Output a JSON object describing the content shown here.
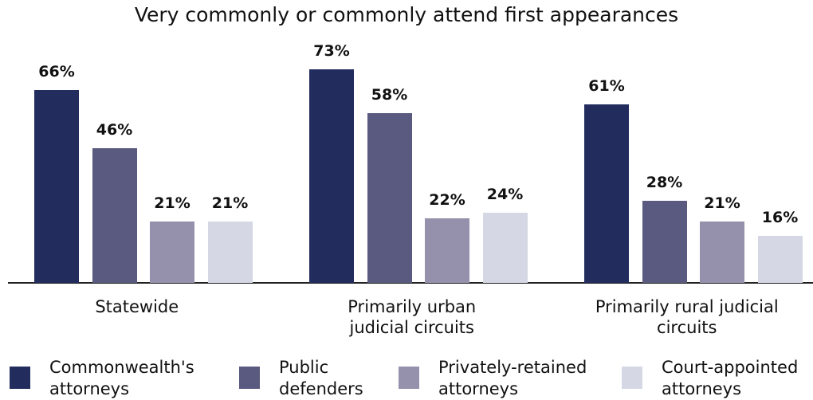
{
  "chart_data": {
    "type": "bar",
    "title": "Very commonly or commonly attend first appearances",
    "categories": [
      "Statewide",
      "Primarily urban judicial circuits",
      "Primarily rural judicial circuits"
    ],
    "series": [
      {
        "name": "Commonwealth's attorneys",
        "color": "#222d5e",
        "values": [
          66,
          73,
          61
        ],
        "value_labels": [
          "66%",
          "73%",
          "61%"
        ]
      },
      {
        "name": "Public defenders",
        "color": "#5a5a80",
        "values": [
          46,
          58,
          28
        ],
        "value_labels": [
          "46%",
          "58%",
          "28%"
        ]
      },
      {
        "name": "Privately-retained attorneys",
        "color": "#9590ac",
        "values": [
          21,
          22,
          21
        ],
        "value_labels": [
          "21%",
          "22%",
          "21%"
        ]
      },
      {
        "name": "Court-appointed attorneys",
        "color": "#d5d8e4",
        "values": [
          21,
          24,
          16
        ],
        "value_labels": [
          "21%",
          "24%",
          "16%"
        ]
      }
    ],
    "legend": "bottom"
  }
}
